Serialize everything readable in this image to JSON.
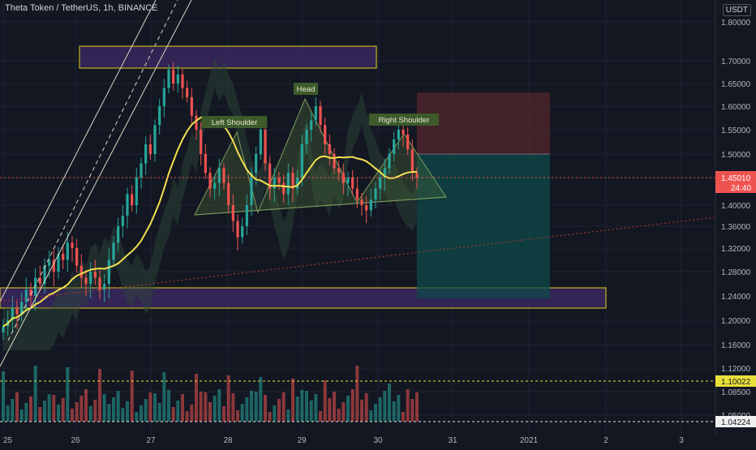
{
  "header": {
    "symbol_line": "Theta Token / TetherUS, 1h, BINANCE",
    "currency": "USDT"
  },
  "colors": {
    "background": "#131722",
    "grid": "#1f2331",
    "bull": "#26a69a",
    "bear": "#ef5350",
    "ma": "#f5e050",
    "zone_outline": "#e8d21a",
    "zone_fill": "#3d2a66",
    "stop_fill": "#6b2a30",
    "target_fill": "#0f4a4a",
    "price_tag": "#ef5350"
  },
  "chart_data": {
    "type": "candlestick",
    "x_ticks": [
      "25",
      "26",
      "27",
      "28",
      "29",
      "30",
      "31",
      "2021",
      "2",
      "3"
    ],
    "y_ticks": [
      "1.80000",
      "1.70000",
      "1.65000",
      "1.60000",
      "1.55000",
      "1.50000",
      "1.45000",
      "1.40000",
      "1.36000",
      "1.32000",
      "1.28000",
      "1.24000",
      "1.20000",
      "1.16000",
      "1.12000",
      "1.08500",
      "1.05000"
    ],
    "current_price": {
      "value": "1.45010",
      "countdown": "24:40"
    },
    "horizontal_levels": [
      {
        "label": "1.10022"
      },
      {
        "label": "1.04224"
      }
    ],
    "annotations": [
      "Left Shoulder",
      "Head",
      "Right Shoulder"
    ],
    "candles_close": [
      1.19,
      1.2,
      1.22,
      1.21,
      1.23,
      1.25,
      1.24,
      1.27,
      1.26,
      1.29,
      1.3,
      1.28,
      1.31,
      1.3,
      1.33,
      1.32,
      1.29,
      1.27,
      1.26,
      1.28,
      1.27,
      1.25,
      1.26,
      1.3,
      1.33,
      1.36,
      1.38,
      1.42,
      1.4,
      1.45,
      1.48,
      1.52,
      1.5,
      1.56,
      1.6,
      1.64,
      1.68,
      1.65,
      1.67,
      1.64,
      1.62,
      1.58,
      1.55,
      1.5,
      1.46,
      1.43,
      1.44,
      1.47,
      1.44,
      1.4,
      1.37,
      1.34,
      1.36,
      1.4,
      1.46,
      1.5,
      1.55,
      1.48,
      1.43,
      1.45,
      1.44,
      1.42,
      1.46,
      1.43,
      1.45,
      1.52,
      1.55,
      1.57,
      1.6,
      1.56,
      1.52,
      1.5,
      1.47,
      1.46,
      1.44,
      1.45,
      1.43,
      1.41,
      1.4,
      1.39,
      1.41,
      1.43,
      1.45,
      1.47,
      1.5,
      1.53,
      1.55,
      1.54,
      1.51,
      1.46,
      1.45
    ]
  }
}
